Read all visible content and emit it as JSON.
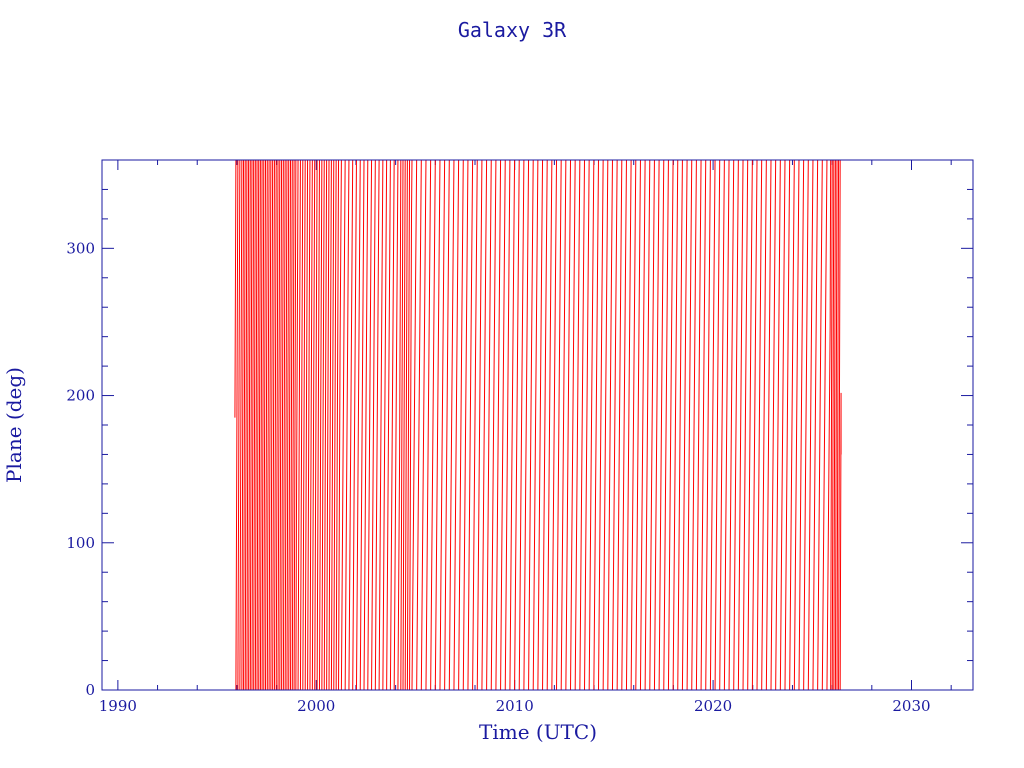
{
  "chart_data": {
    "type": "line",
    "title": "Galaxy 3R",
    "xlabel": "Time (UTC)",
    "ylabel": "Plane (deg)",
    "xlim": [
      1989.2,
      2033.1
    ],
    "ylim": [
      0,
      360
    ],
    "x_ticks": [
      1990,
      2000,
      2010,
      2020,
      2030
    ],
    "y_ticks": [
      0,
      100,
      200,
      300
    ],
    "x_minor_step": 2,
    "y_minor_step": 20,
    "grid": false,
    "series": [
      {
        "color": "#ff0000",
        "data_start": 1995.9,
        "data_end": 2026.45,
        "start_value": 185,
        "end_value": 160,
        "segments": [
          {
            "from": 1995.9,
            "to": 1996.25,
            "cycle_years": 0.1
          },
          {
            "from": 1996.25,
            "to": 1997.4,
            "cycle_years": 0.085
          },
          {
            "from": 1997.4,
            "to": 1999.0,
            "cycle_years": 0.09
          },
          {
            "from": 1999.0,
            "to": 2001.2,
            "cycle_years": 0.12
          },
          {
            "from": 2001.2,
            "to": 2004.2,
            "cycle_years": 0.19
          },
          {
            "from": 2004.2,
            "to": 2004.8,
            "cycle_years": 0.11
          },
          {
            "from": 2004.8,
            "to": 2025.9,
            "cycle_years": 0.235
          },
          {
            "from": 2025.9,
            "to": 2026.45,
            "cycle_years": 0.08
          }
        ]
      }
    ]
  }
}
